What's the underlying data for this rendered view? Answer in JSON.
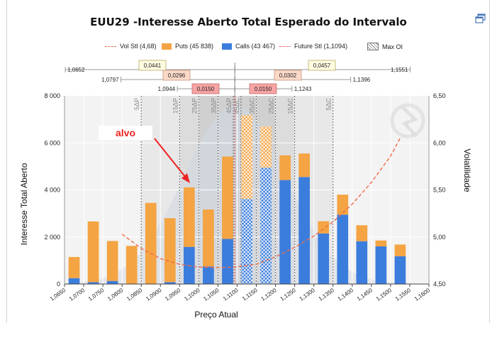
{
  "title": "EUU29 -Interesse Aberto Total Esperado do Intervalo",
  "icons": {
    "restore": "restore-window-icon",
    "watermark": "logo-watermark-icon"
  },
  "legend": [
    {
      "label": "Vol Stl (4,68)",
      "kind": "dash-line",
      "color": "#f06a4a"
    },
    {
      "label": "Puts (45 838)",
      "kind": "box",
      "color": "#f4a443"
    },
    {
      "label": "Calls (43 467)",
      "kind": "box",
      "color": "#3b7ddd"
    },
    {
      "label": "Future Stl (1,1094)",
      "kind": "dot-line",
      "color": "#e03030"
    },
    {
      "label": "Max OI",
      "kind": "hatch",
      "color": "#888888"
    }
  ],
  "annotation": {
    "text": "alvo",
    "color": "#ee2222"
  },
  "ranges": {
    "left_labels": [
      "1,0652",
      "1,0797",
      "1,0944"
    ],
    "right_labels": [
      "1,1551",
      "1,1396",
      "1,1243"
    ],
    "widths": [
      "0,0441",
      "0,0296",
      "0,0150",
      "0,0457",
      "0,0302",
      "0,0150"
    ]
  },
  "chart_data": {
    "type": "bar",
    "title": "EUU29 -Interesse Aberto Total Esperado do Intervalo",
    "xlabel": "Preço Atual",
    "ylabel": "Interesse Total Aberto",
    "y2label": "Volatilidade",
    "ylim": [
      0,
      8000
    ],
    "y2lim": [
      4.5,
      6.5
    ],
    "xlim": [
      1.065,
      1.16
    ],
    "x_tick_labels": [
      "1,0650",
      "1,0700",
      "1,0750",
      "1,0800",
      "1,0850",
      "1,0900",
      "1,0950",
      "1,1000",
      "1,1050",
      "1,1100",
      "1,1150",
      "1,1200",
      "1,1250",
      "1,1300",
      "1,1350",
      "1,1400",
      "1,1450",
      "1,1500",
      "1,1550",
      "1,1600"
    ],
    "y_tick_labels": [
      "0",
      "2 000",
      "4 000",
      "6 000",
      "8 000"
    ],
    "y2_tick_labels": [
      "4,50",
      "5,00",
      "5,50",
      "6,00",
      "6,50"
    ],
    "categories": [
      1.0675,
      1.0725,
      1.0775,
      1.0825,
      1.0875,
      1.0925,
      1.0975,
      1.1025,
      1.1075,
      1.1125,
      1.1175,
      1.1225,
      1.1275,
      1.1325,
      1.1375,
      1.1425,
      1.1475,
      1.1525
    ],
    "series": [
      {
        "name": "Calls (43 467)",
        "values": [
          250,
          80,
          130,
          0,
          0,
          80,
          1580,
          750,
          1920,
          3620,
          4950,
          4420,
          4550,
          2150,
          2950,
          1820,
          1600,
          1180
        ]
      },
      {
        "name": "Puts (45 838)",
        "values": [
          900,
          2580,
          1700,
          1620,
          3450,
          2720,
          2530,
          2420,
          3500,
          3560,
          1750,
          1050,
          1000,
          520,
          850,
          680,
          250,
          500
        ]
      }
    ],
    "max_oi_index": [
      9,
      10
    ],
    "strike_markers": [
      {
        "x": 1.085,
        "label": "5ΔP"
      },
      {
        "x": 1.095,
        "label": "15ΔP"
      },
      {
        "x": 1.1,
        "label": "25ΔP"
      },
      {
        "x": 1.105,
        "label": "35ΔP"
      },
      {
        "x": 1.109,
        "label": "45ΔP"
      },
      {
        "x": 1.111,
        "label": "45ΔC"
      },
      {
        "x": 1.115,
        "label": "35ΔC"
      },
      {
        "x": 1.12,
        "label": "25ΔC"
      },
      {
        "x": 1.125,
        "label": "15ΔC"
      },
      {
        "x": 1.135,
        "label": "5ΔC"
      }
    ],
    "vol_smile": {
      "name": "Vol Stl (4,68)",
      "x": [
        1.08,
        1.085,
        1.09,
        1.095,
        1.1,
        1.105,
        1.1094,
        1.115,
        1.12,
        1.125,
        1.13,
        1.135,
        1.14,
        1.145,
        1.15,
        1.1525
      ],
      "y": [
        5.03,
        4.88,
        4.77,
        4.71,
        4.68,
        4.675,
        4.68,
        4.71,
        4.79,
        4.89,
        5.01,
        5.16,
        5.35,
        5.58,
        5.86,
        6.05
      ]
    },
    "future_settle": 1.1094
  }
}
